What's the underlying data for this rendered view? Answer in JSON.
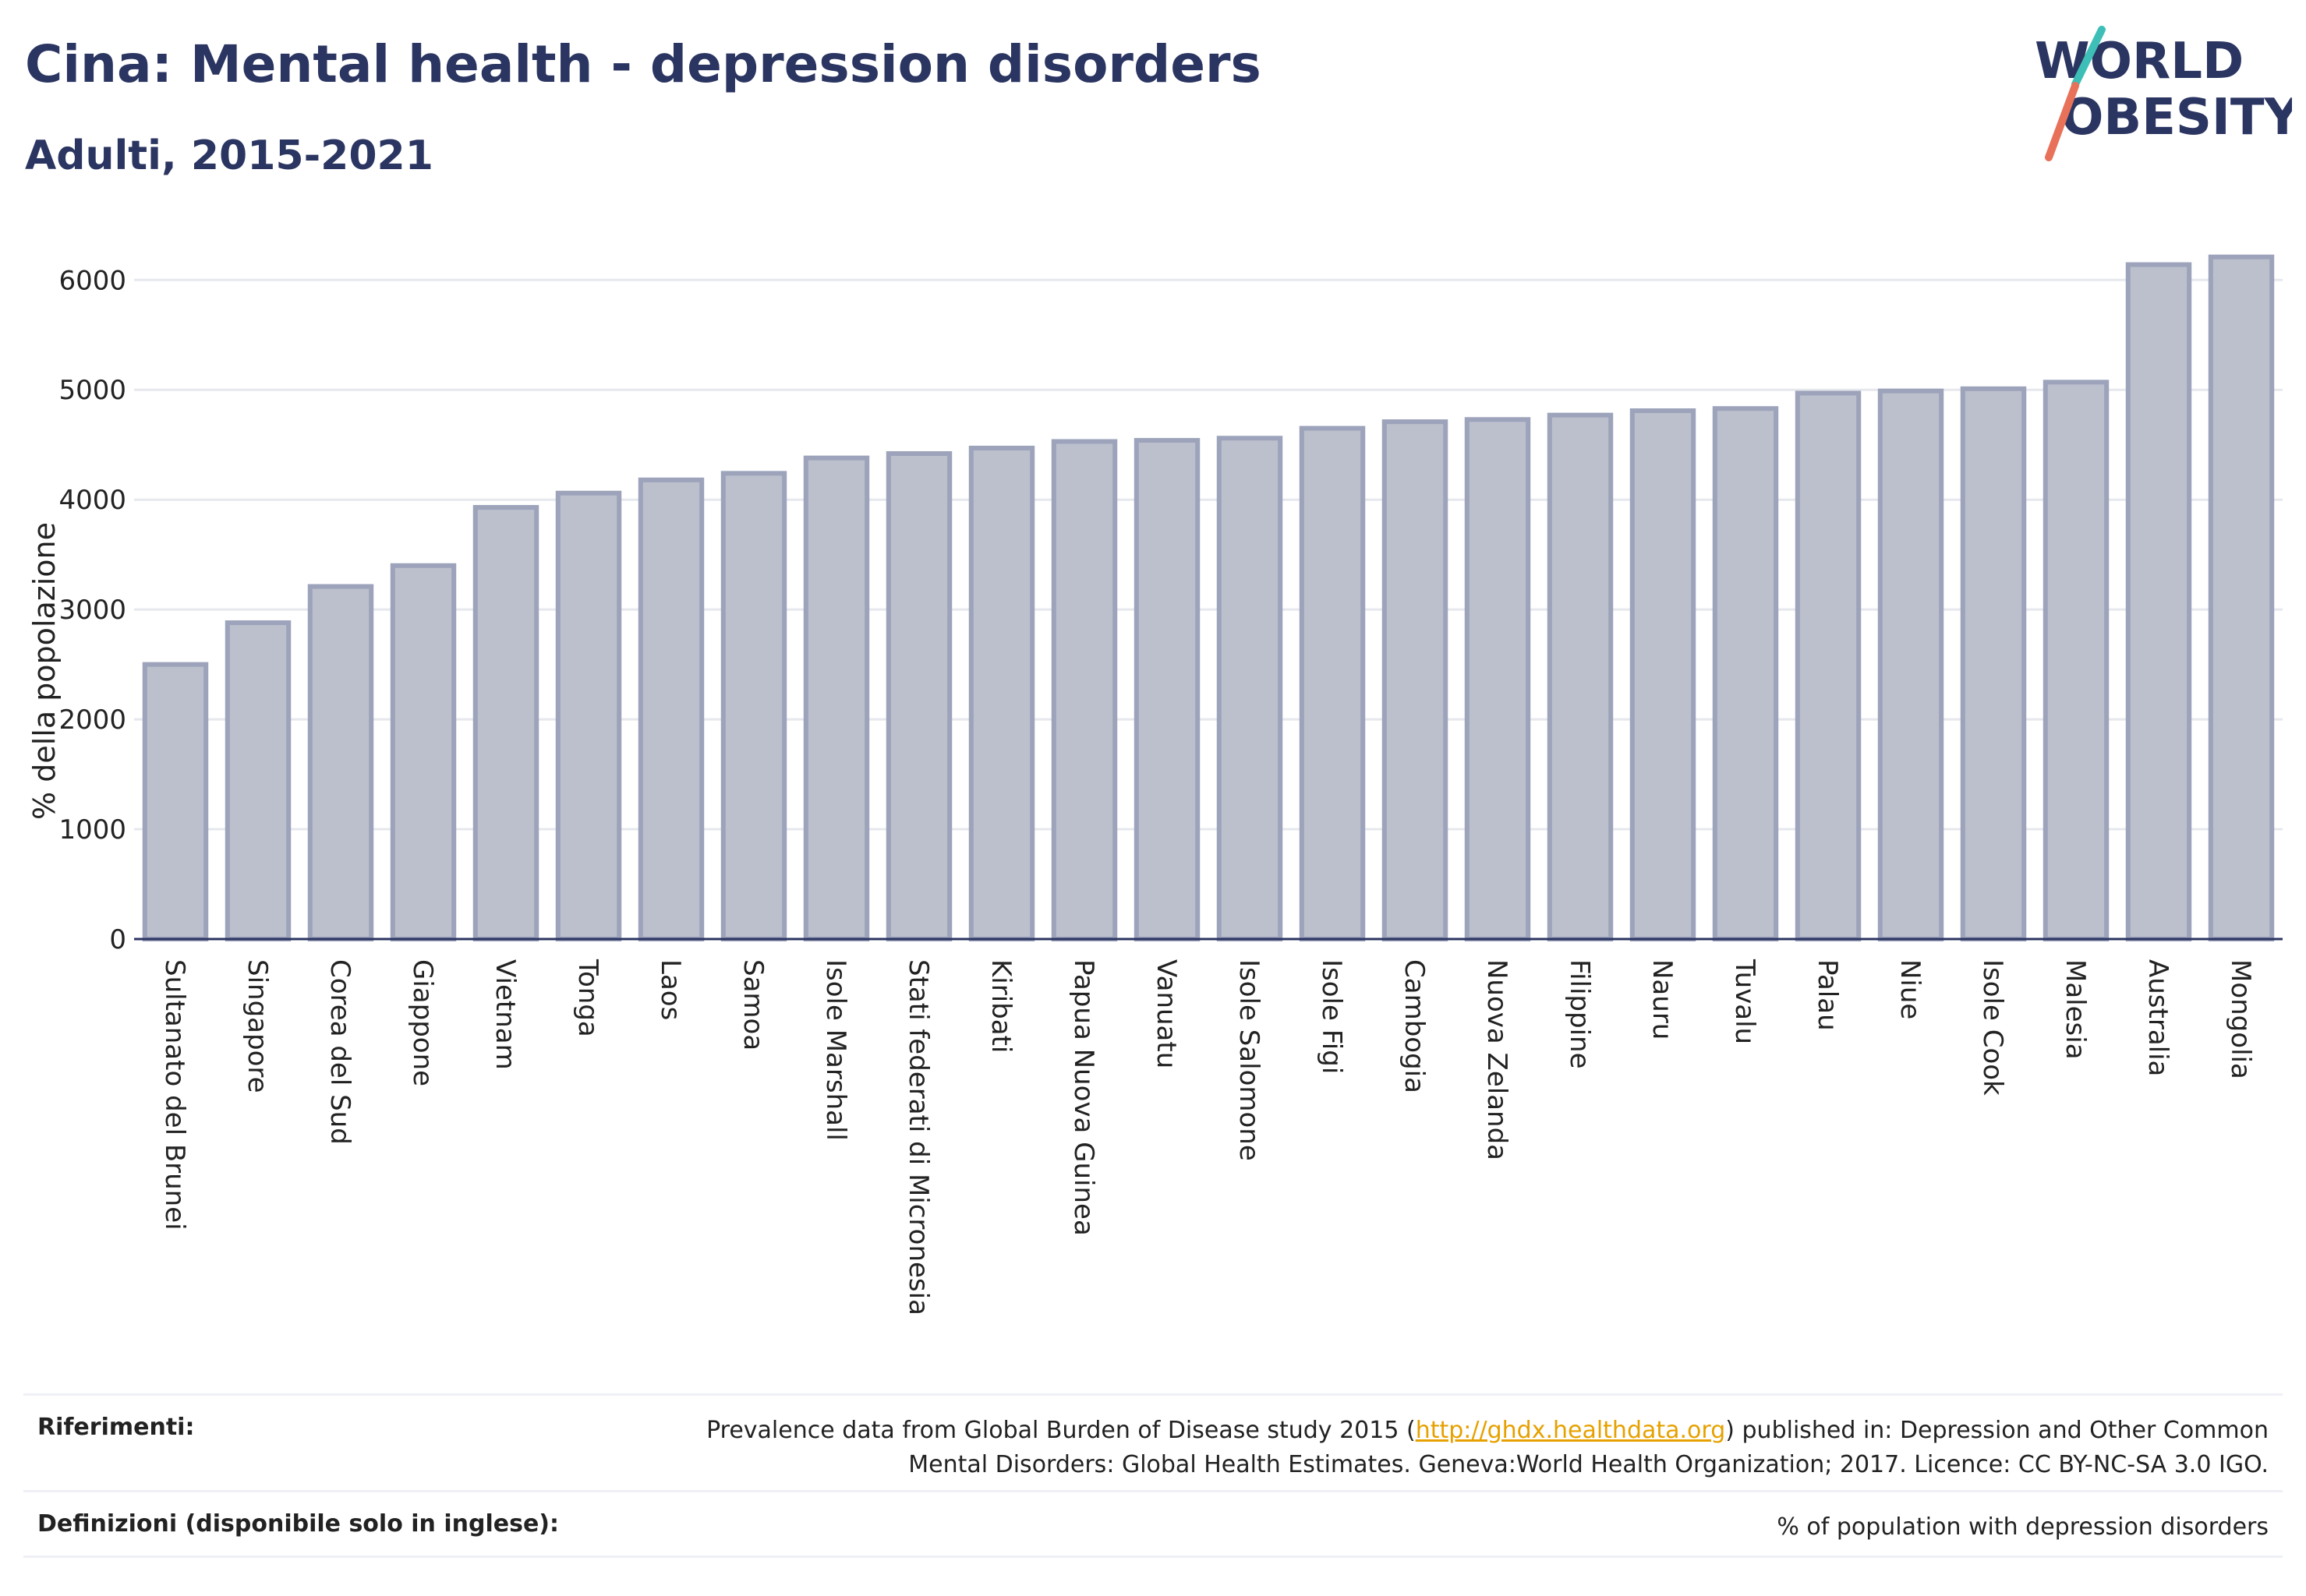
{
  "header": {
    "title": "Cina: Mental health - depression disorders",
    "subtitle": "Adulti, 2015-2021",
    "logo_line1": "WORLD",
    "logo_line2": "OBESITY"
  },
  "colors": {
    "title": "#2b3561",
    "bar_fill": "#bcc0cd",
    "bar_stroke": "#9ca3ba",
    "grid": "#e6e8ee",
    "axis": "#2b3561",
    "link": "#e6a100",
    "logo_teal": "#3dbfb8",
    "logo_red": "#e8715a"
  },
  "chart_data": {
    "type": "bar",
    "title": "",
    "xlabel": "",
    "ylabel": "% della popolazione",
    "ylim": [
      0,
      6300
    ],
    "yticks": [
      0,
      1000,
      2000,
      3000,
      4000,
      5000,
      6000
    ],
    "grid": true,
    "categories": [
      "Sultanato del Brunei",
      "Singapore",
      "Corea del Sud",
      "Giappone",
      "Vietnam",
      "Tonga",
      "Laos",
      "Samoa",
      "Isole Marshall",
      "Stati federati di Micronesia",
      "Kiribati",
      "Papua Nuova Guinea",
      "Vanuatu",
      "Isole Salomone",
      "Isole Figi",
      "Cambogia",
      "Nuova Zelanda",
      "Filippine",
      "Nauru",
      "Tuvalu",
      "Palau",
      "Niue",
      "Isole Cook",
      "Malesia",
      "Australia",
      "Mongolia"
    ],
    "values": [
      2500,
      2880,
      3210,
      3400,
      3930,
      4060,
      4180,
      4240,
      4380,
      4420,
      4470,
      4530,
      4540,
      4560,
      4650,
      4710,
      4730,
      4770,
      4810,
      4830,
      4970,
      4990,
      5010,
      5070,
      6140,
      6210
    ]
  },
  "footer": {
    "refs_label": "Riferimenti:",
    "refs_text_before": "Prevalence data from Global Burden of Disease study 2015 (",
    "refs_link": "http://ghdx.healthdata.org",
    "refs_text_after": ") published in: Depression and Other Common",
    "refs_text_line2": "Mental Disorders: Global Health Estimates. Geneva:World Health Organization; 2017. Licence: CC BY-NC-SA 3.0 IGO.",
    "defs_label": "Definizioni (disponibile solo in inglese):",
    "defs_text": "% of population with depression disorders"
  }
}
